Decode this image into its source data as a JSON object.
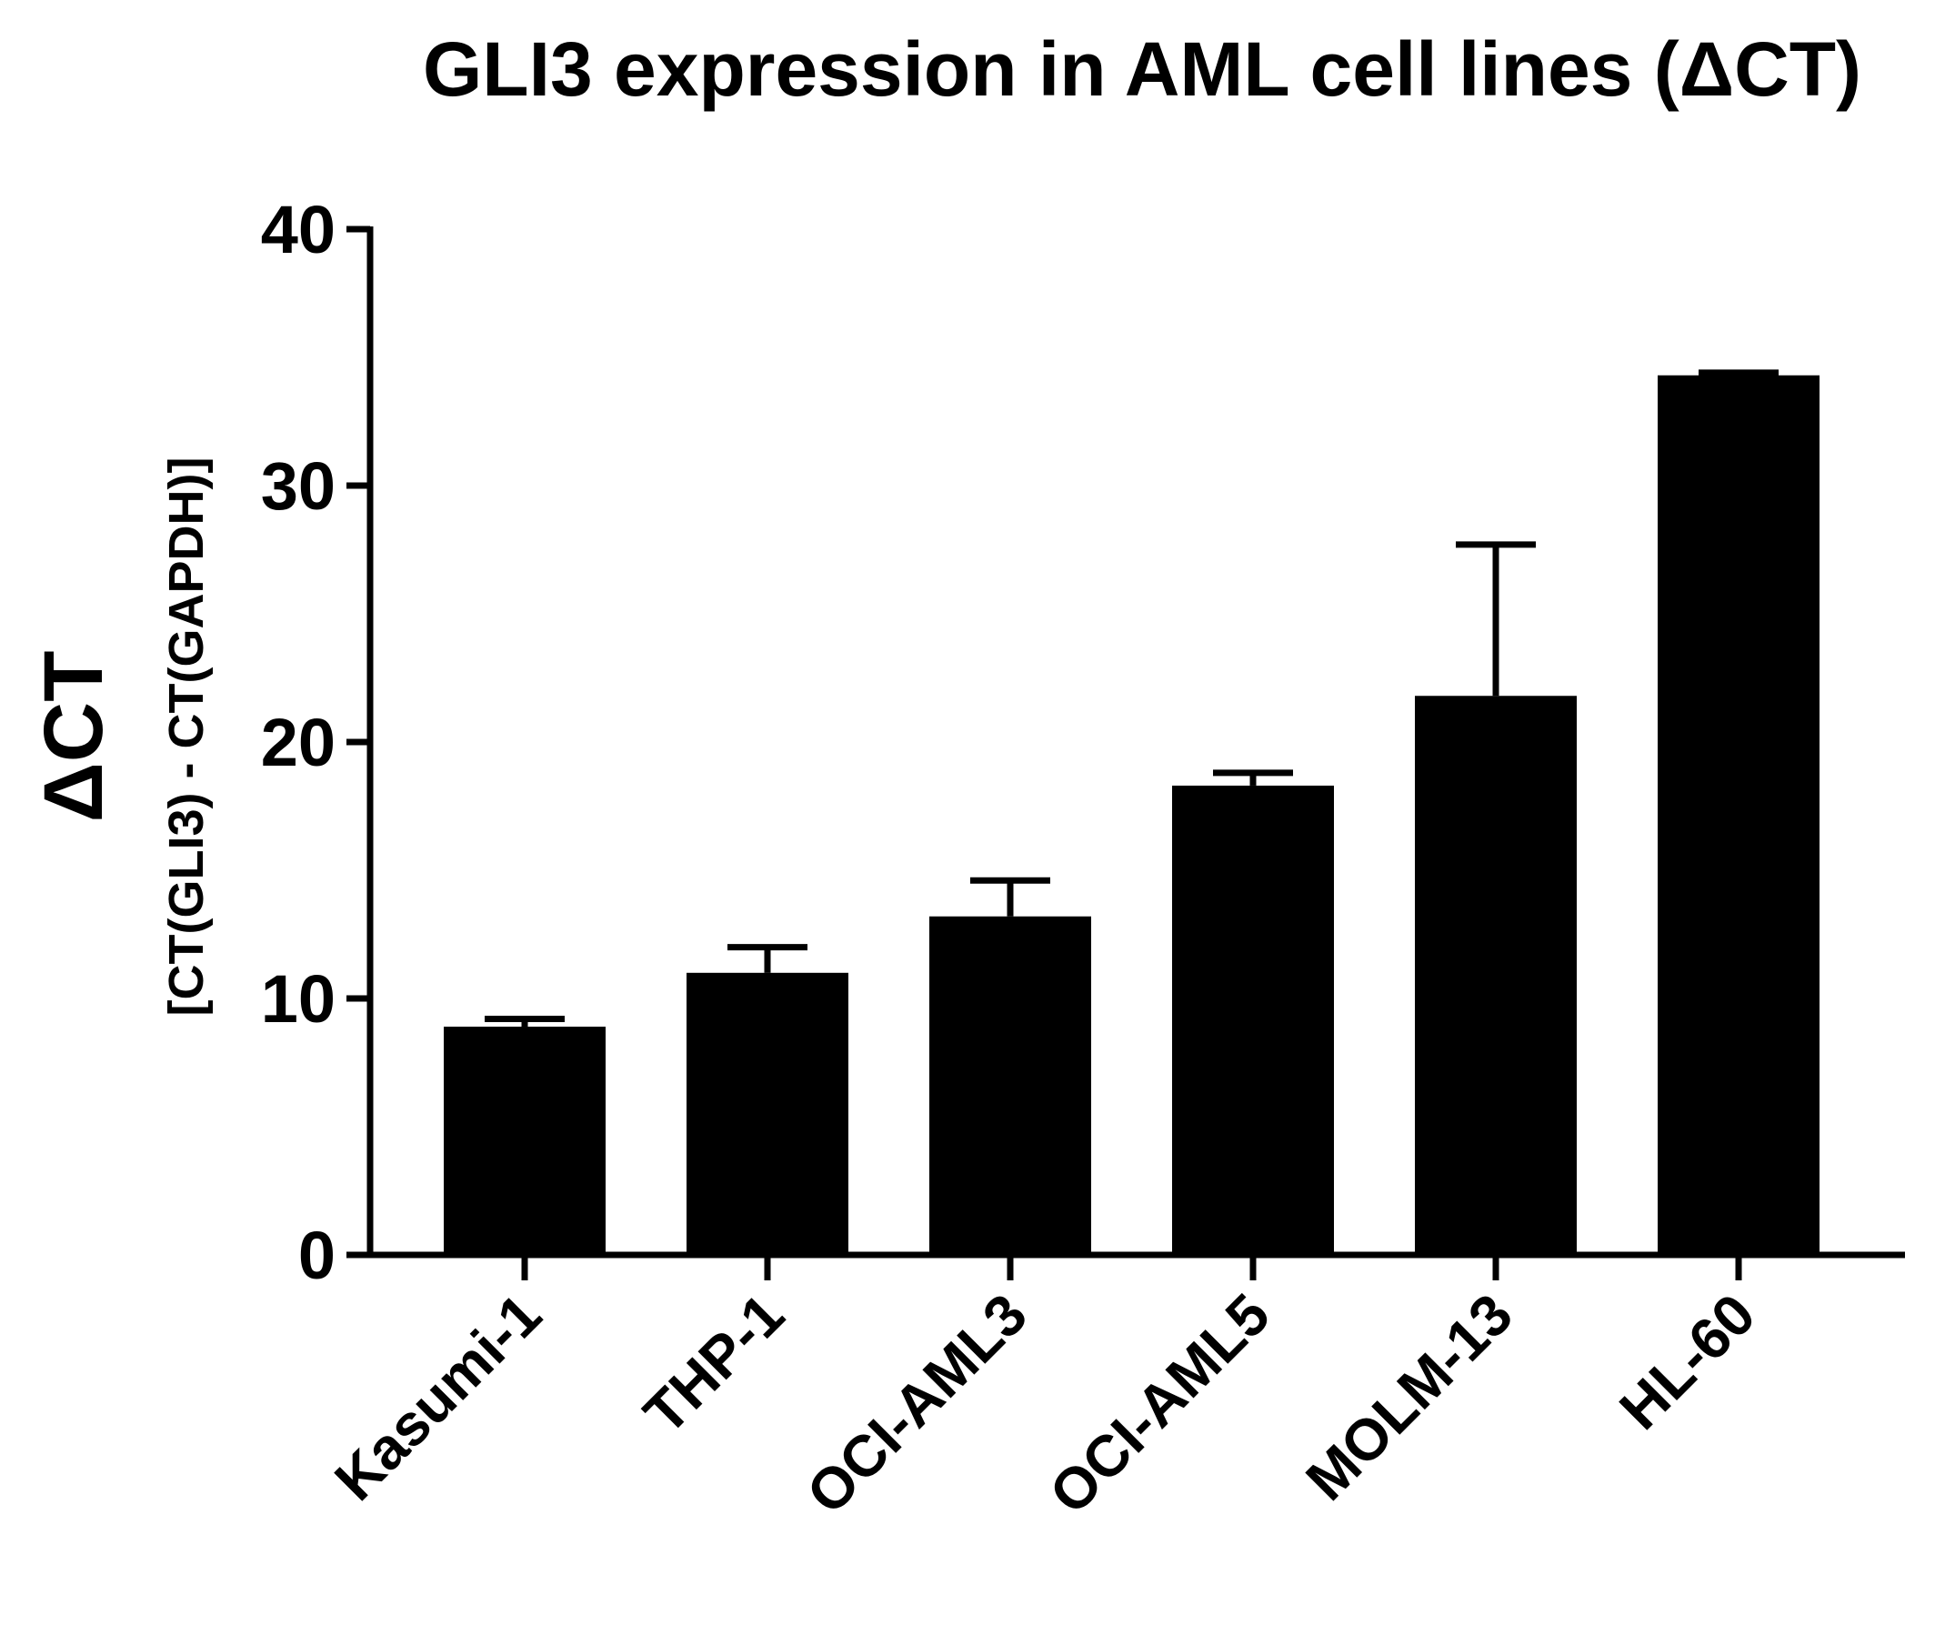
{
  "chart_data": {
    "type": "bar",
    "title": "GLI3 expression in AML cell lines (ΔCT)",
    "ylabel": "ΔCT",
    "ylabel_sub": "[CT(GLI3) - CT(GAPDH)]",
    "xlabel": "",
    "categories": [
      "Kasumi-1",
      "THP-1",
      "OCI-AML3",
      "OCI-AML5",
      "MOLM-13",
      "HL-60"
    ],
    "values": [
      8.9,
      11.0,
      13.2,
      18.3,
      21.8,
      34.3
    ],
    "error_upper": [
      0.3,
      1.0,
      1.4,
      0.5,
      5.9,
      0.1
    ],
    "ylim": [
      0,
      40
    ],
    "yticks": [
      0,
      10,
      20,
      30,
      40
    ],
    "ytick_labels": [
      "0",
      "10",
      "20",
      "30",
      "40"
    ],
    "grid": false,
    "legend": "none",
    "colors": {
      "bar": "#000000",
      "axis": "#000000",
      "background": "#ffffff"
    }
  }
}
